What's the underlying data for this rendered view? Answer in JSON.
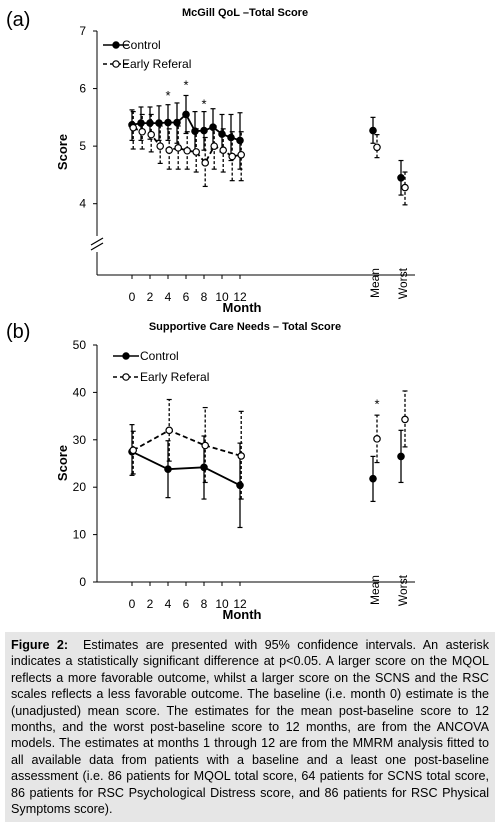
{
  "panel_a_label": "(a)",
  "panel_b_label": "(b)",
  "chart_data": [
    {
      "type": "line",
      "title": "McGill QoL –Total Score",
      "xlabel": "Month",
      "ylabel": "Score",
      "ylim": [
        3.3,
        7
      ],
      "yticks": [
        4,
        5,
        6,
        7
      ],
      "axis_break": true,
      "x_ticks": [
        "0",
        "2",
        "4",
        "6",
        "8",
        "10",
        "12"
      ],
      "summary_labels": [
        "Mean",
        "Worst"
      ],
      "grid": false,
      "legend": "top-left",
      "series": [
        {
          "name": "Control",
          "style": "solid",
          "marker": "filled-circle",
          "x": [
            0,
            1,
            2,
            3,
            4,
            5,
            6,
            7,
            8,
            9,
            10,
            11,
            12
          ],
          "y": [
            5.37,
            5.4,
            5.4,
            5.4,
            5.41,
            5.41,
            5.55,
            5.26,
            5.27,
            5.33,
            5.21,
            5.15,
            5.1
          ],
          "ci_low": [
            5.1,
            5.1,
            5.12,
            5.1,
            5.1,
            5.05,
            5.22,
            4.9,
            4.93,
            4.95,
            4.9,
            4.75,
            4.6
          ],
          "ci_high": [
            5.63,
            5.68,
            5.68,
            5.7,
            5.72,
            5.75,
            5.88,
            5.6,
            5.6,
            5.65,
            5.55,
            5.55,
            5.58
          ],
          "mean": 5.27,
          "mean_ci": [
            5.05,
            5.5
          ],
          "worst": 4.45,
          "worst_ci": [
            4.15,
            4.75
          ]
        },
        {
          "name": "Early Referal",
          "style": "dashed",
          "marker": "open-circle",
          "x": [
            0,
            1,
            2,
            3,
            4,
            5,
            6,
            7,
            8,
            9,
            10,
            11,
            12
          ],
          "y": [
            5.32,
            5.25,
            5.2,
            5.0,
            4.93,
            4.97,
            4.92,
            4.9,
            4.71,
            5.0,
            4.93,
            4.82,
            4.85
          ],
          "ci_low": [
            4.95,
            4.95,
            4.9,
            4.7,
            4.6,
            4.6,
            4.6,
            4.55,
            4.3,
            4.6,
            4.55,
            4.4,
            4.4
          ],
          "ci_high": [
            5.6,
            5.55,
            5.55,
            5.35,
            5.3,
            5.35,
            5.25,
            5.3,
            5.15,
            5.35,
            5.3,
            5.25,
            5.25
          ],
          "mean": 4.98,
          "mean_ci": [
            4.8,
            5.2
          ],
          "worst": 4.28,
          "worst_ci": [
            3.98,
            4.55
          ]
        }
      ],
      "annotations": [
        {
          "text": "*",
          "x": 4,
          "y": 5.8
        },
        {
          "text": "*",
          "x": 6,
          "y": 5.98
        },
        {
          "text": "*",
          "x": 8,
          "y": 5.65
        }
      ]
    },
    {
      "type": "line",
      "title": "Supportive Care Needs – Total Score",
      "xlabel": "Month",
      "ylabel": "Score",
      "ylim": [
        0,
        50
      ],
      "yticks": [
        0,
        10,
        20,
        30,
        40,
        50
      ],
      "axis_break": false,
      "x_ticks": [
        "0",
        "2",
        "4",
        "6",
        "8",
        "10",
        "12"
      ],
      "summary_labels": [
        "Mean",
        "Worst"
      ],
      "grid": false,
      "legend": "top-left",
      "series": [
        {
          "name": "Control",
          "style": "solid",
          "marker": "filled-circle",
          "x": [
            0,
            4,
            8,
            12
          ],
          "y": [
            27.5,
            23.8,
            24.2,
            20.4
          ],
          "ci_low": [
            22.5,
            17.8,
            17.5,
            11.5
          ],
          "ci_high": [
            33.2,
            29.8,
            30.8,
            29.3
          ],
          "mean": 21.8,
          "mean_ci": [
            17.0,
            26.5
          ],
          "worst": 26.5,
          "worst_ci": [
            21.0,
            32.0
          ]
        },
        {
          "name": "Early Referal",
          "style": "dashed",
          "marker": "open-circle",
          "x": [
            0,
            4,
            8,
            12
          ],
          "y": [
            27.8,
            32.0,
            28.8,
            26.6
          ],
          "ci_low": [
            22.8,
            25.5,
            21.0,
            17.5
          ],
          "ci_high": [
            31.8,
            38.5,
            36.8,
            36.0
          ],
          "mean": 30.2,
          "mean_ci": [
            25.2,
            35.2
          ],
          "worst": 34.3,
          "worst_ci": [
            28.5,
            40.3
          ]
        }
      ],
      "annotations": [
        {
          "text": "*",
          "x": "Mean",
          "y": 36.6
        }
      ]
    }
  ],
  "caption": {
    "label": "Figure 2:",
    "text": "Estimates are presented with 95% confidence intervals. An asterisk indicates a statistically significant difference at p<0.05. A larger score on the MQOL reflects a more favorable outcome, whilst a larger score on the SCNS and the RSC scales reflects a less favorable outcome. The baseline (i.e. month 0) estimate is the (unadjusted) mean score. The estimates for the mean post-baseline score to 12 months, and the worst post-baseline score to 12 months, are from the ANCOVA models. The estimates at months 1 through 12 are from the MMRM analysis fitted to all available data from patients with a baseline and a least one post-baseline assessment (i.e. 86 patients for MQOL total score, 64 patients for SCNS total score, 86 patients for RSC Psychological Distress score, and 86 patients for RSC Physical Symptoms score)."
  }
}
